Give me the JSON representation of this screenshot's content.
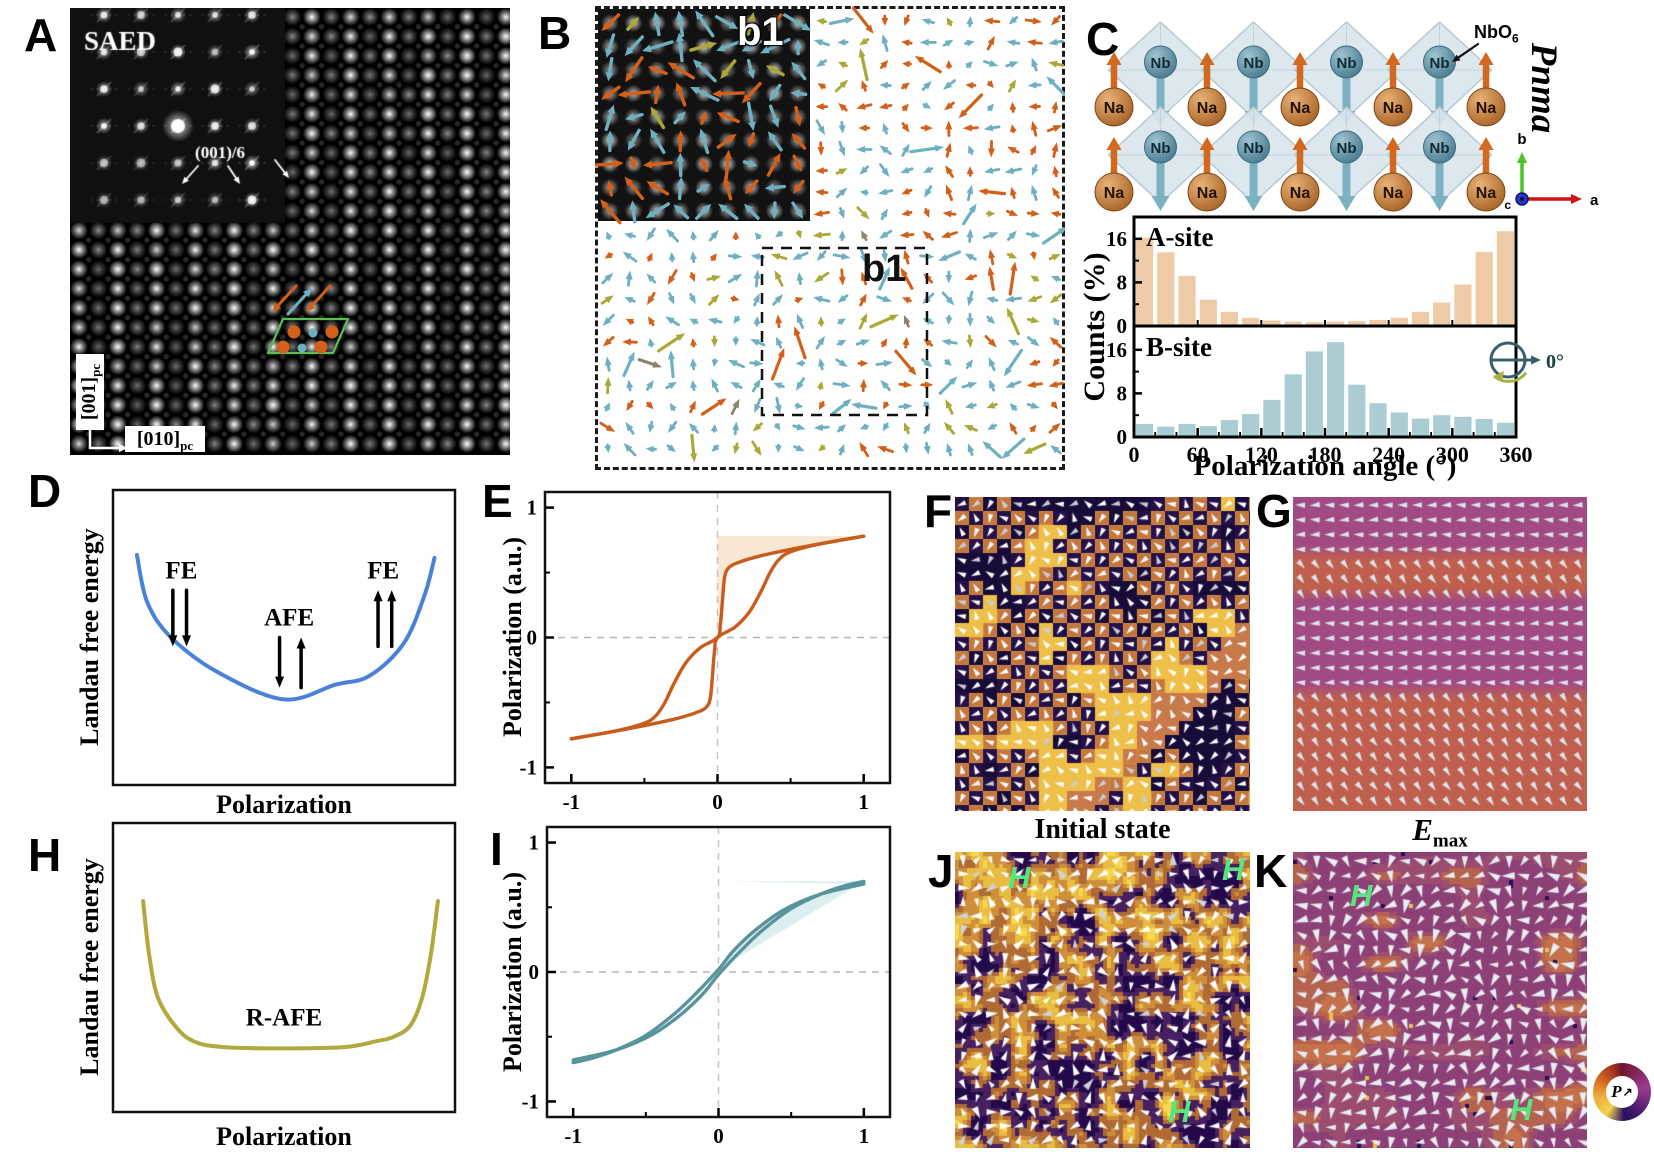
{
  "panels": {
    "A": {
      "label": "A",
      "saed": "SAED",
      "reflection_label": "(001)/6",
      "axis_vertical": "[001]",
      "axis_horizontal": "[010]",
      "axis_subscript": "pc"
    },
    "B": {
      "label": "B",
      "inset_label": "b1",
      "box_label": "b1"
    },
    "C": {
      "label": "C",
      "atom_a": "Na",
      "atom_b": "Nb",
      "octahedron": "NbO",
      "octahedron_sub": "6",
      "space_group": "Pnma",
      "axis_a": "a",
      "axis_b": "b",
      "axis_c": "c"
    },
    "D": {
      "label": "D",
      "ylabel": "Landau free energy",
      "xlabel": "Polarization"
    },
    "E": {
      "label": "E",
      "ylabel": "Polarization (a.u.)"
    },
    "F": {
      "label": "F",
      "caption": "Initial state"
    },
    "G": {
      "label": "G",
      "caption_main": "E",
      "caption_sub": "max"
    },
    "H": {
      "label": "H",
      "ylabel": "Landau free energy",
      "xlabel": "Polarization"
    },
    "I": {
      "label": "I",
      "ylabel": "Polarization (a.u.)"
    },
    "J": {
      "label": "J",
      "h_label": "H"
    },
    "K": {
      "label": "K",
      "h_label": "H"
    },
    "wheel": {
      "label": "P",
      "arrow": "↗"
    }
  },
  "hist": {
    "ylabel": "Counts (%)",
    "xlabel": "Polarization angle (°)",
    "a_site_label": "A-site",
    "b_site_label": "B-site"
  },
  "chart_data": [
    {
      "id": "hist-a-site",
      "type": "bar",
      "title": "A-site",
      "bin_centers": [
        10,
        30,
        50,
        70,
        90,
        110,
        130,
        150,
        170,
        190,
        210,
        230,
        250,
        270,
        290,
        310,
        330,
        350
      ],
      "values": [
        16.2,
        13.5,
        9.2,
        4.8,
        2.6,
        1.5,
        1.0,
        0.8,
        0.7,
        0.8,
        0.9,
        1.1,
        1.5,
        2.6,
        4.3,
        7.6,
        13.6,
        17.4
      ],
      "xlabel": "Polarization angle (°)",
      "ylabel": "Counts (%)",
      "xlim": [
        0,
        360
      ],
      "ylim": [
        0,
        20
      ],
      "xticks": [
        0,
        60,
        120,
        180,
        240,
        300,
        360
      ],
      "yticks": [
        0,
        8,
        16
      ],
      "bar_color": "#efcaa6",
      "legend_position": "inside top-left",
      "grid": false
    },
    {
      "id": "hist-b-site",
      "type": "bar",
      "title": "B-site",
      "bin_centers": [
        10,
        30,
        50,
        70,
        90,
        110,
        130,
        150,
        170,
        190,
        210,
        230,
        250,
        270,
        290,
        310,
        330,
        350
      ],
      "values": [
        2.4,
        1.9,
        2.4,
        2.0,
        3.1,
        4.2,
        6.8,
        11.5,
        15.7,
        17.4,
        9.6,
        6.2,
        4.5,
        3.4,
        4.0,
        3.7,
        3.3,
        2.6
      ],
      "xlabel": "Polarization angle (°)",
      "ylabel": "Counts (%)",
      "xlim": [
        0,
        360
      ],
      "ylim": [
        0,
        20
      ],
      "xticks": [
        0,
        60,
        120,
        180,
        240,
        300,
        360
      ],
      "yticks": [
        0,
        8,
        16
      ],
      "bar_color": "#a9cdd2",
      "zero_marker": "0°",
      "grid": false
    },
    {
      "id": "landau-fe-afe",
      "type": "line",
      "color": "#4a82d9",
      "xlabel": "Polarization",
      "ylabel": "Landau free energy",
      "annotations": {
        "left": "FE",
        "center": "AFE",
        "right": "FE"
      },
      "points_frac": [
        [
          0.07,
          0.22
        ],
        [
          0.1,
          0.38
        ],
        [
          0.17,
          0.5
        ],
        [
          0.31,
          0.62
        ],
        [
          0.5,
          0.71
        ],
        [
          0.65,
          0.66
        ],
        [
          0.75,
          0.63
        ],
        [
          0.85,
          0.52
        ],
        [
          0.91,
          0.36
        ],
        [
          0.94,
          0.23
        ]
      ]
    },
    {
      "id": "pe-loop-afe",
      "type": "line",
      "color": "#c95c1d",
      "fill": "#f8e7d2",
      "xlabel": "",
      "ylabel": "Polarization (a.u.)",
      "xticks": [
        -1,
        0,
        1
      ],
      "yticks": [
        -1,
        0,
        1
      ],
      "xlim": [
        -1.18,
        1.18
      ],
      "ylim": [
        -1.12,
        1.12
      ],
      "saturation": 0.78,
      "branch_up": [
        [
          -1,
          -0.78
        ],
        [
          -0.7,
          -0.72
        ],
        [
          -0.5,
          -0.66
        ],
        [
          -0.42,
          -0.6
        ],
        [
          -0.36,
          -0.5
        ],
        [
          -0.3,
          -0.36
        ],
        [
          -0.22,
          -0.2
        ],
        [
          -0.12,
          -0.08
        ],
        [
          0,
          0
        ],
        [
          0.02,
          0.1
        ],
        [
          0.035,
          0.3
        ],
        [
          0.05,
          0.47
        ],
        [
          0.08,
          0.54
        ],
        [
          0.15,
          0.58
        ],
        [
          0.3,
          0.63
        ],
        [
          0.6,
          0.7
        ],
        [
          1,
          0.78
        ]
      ]
    },
    {
      "id": "landau-r-afe",
      "type": "line",
      "color": "#b1a83e",
      "xlabel": "Polarization",
      "ylabel": "Landau free energy",
      "annotations": {
        "center": "R-AFE"
      },
      "points_frac": [
        [
          0.088,
          0.27
        ],
        [
          0.105,
          0.45
        ],
        [
          0.13,
          0.6
        ],
        [
          0.18,
          0.7
        ],
        [
          0.235,
          0.755
        ],
        [
          0.32,
          0.775
        ],
        [
          0.5,
          0.78
        ],
        [
          0.68,
          0.775
        ],
        [
          0.77,
          0.755
        ],
        [
          0.82,
          0.74
        ],
        [
          0.87,
          0.7
        ],
        [
          0.905,
          0.6
        ],
        [
          0.93,
          0.45
        ],
        [
          0.95,
          0.27
        ]
      ]
    },
    {
      "id": "pe-loop-r-afe",
      "type": "line",
      "color": "#59949c",
      "fill": "#ddeef1",
      "xlabel": "",
      "ylabel": "Polarization (a.u.)",
      "xticks": [
        -1,
        0,
        1
      ],
      "yticks": [
        -1,
        0,
        1
      ],
      "xlim": [
        -1.18,
        1.18
      ],
      "ylim": [
        -1.12,
        1.12
      ],
      "saturation": 0.7,
      "branch_up": [
        [
          -1,
          -0.68
        ],
        [
          -0.7,
          -0.6
        ],
        [
          -0.45,
          -0.48
        ],
        [
          -0.25,
          -0.32
        ],
        [
          -0.1,
          -0.16
        ],
        [
          0,
          -0.02
        ],
        [
          0.15,
          0.16
        ],
        [
          0.3,
          0.32
        ],
        [
          0.5,
          0.49
        ],
        [
          0.7,
          0.6
        ],
        [
          0.85,
          0.66
        ],
        [
          1,
          0.7
        ]
      ]
    }
  ],
  "colors": {
    "arrow_orange": "#d2601a",
    "arrow_teal": "#6fb0c0",
    "arrow_olive": "#a9a838",
    "arrow_gray": "#8d8470",
    "na": "#c07a3c",
    "nb": "#5f93a5",
    "octahedron": "#d9e6ec",
    "up_arrow": "#d2691e",
    "down_arrow": "#7cb1c2",
    "cell_outline": "#58c052",
    "h_mark": "#57e67c",
    "phase_purple": "#a14a83",
    "phase_salmon": "#c05f4d",
    "f_dark": "#241047",
    "f_dark2": "#180b38",
    "f_orange": "#c4763d",
    "f_yellow": "#eec04a",
    "f_salmon": "#c87a4a",
    "j_pal": [
      "#23094a",
      "#46205f",
      "#b06a33",
      "#cf8f3a",
      "#e9bc42",
      "#f7d84e"
    ],
    "k_base": "#8d4076",
    "k_dark": "#2a0d50",
    "k_orange": "#c4714c",
    "k_yellow": "#e9c24a",
    "icon_circle": "#35606b",
    "icon_arc": "#aab03c"
  }
}
